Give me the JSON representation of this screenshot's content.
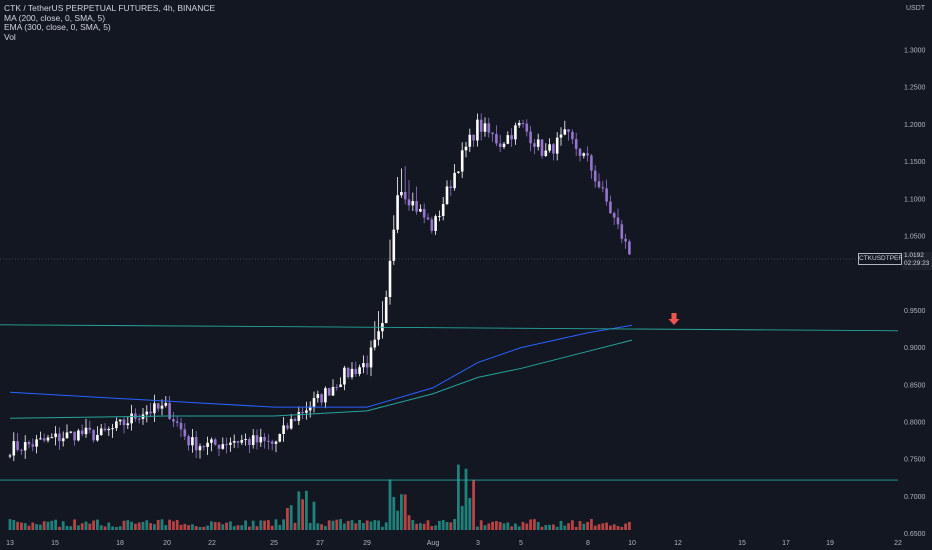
{
  "legend": {
    "title": "CTK / TetherUS PERPETUAL FUTURES, 4h, BINANCE",
    "ma": "MA (200, close, 0, SMA, 5)",
    "ema": "EMA (300, close, 0, SMA, 5)",
    "vol": "Vol"
  },
  "axis": {
    "unit": "USDT",
    "y_ticks": [
      "1.3000",
      "1.2500",
      "1.2000",
      "1.1500",
      "1.1000",
      "1.0500",
      "0.9500",
      "0.9000",
      "0.8500",
      "0.8000",
      "0.7500",
      "0.7000",
      "0.6500"
    ],
    "x_ticks": [
      "13",
      "15",
      "18",
      "20",
      "22",
      "25",
      "27",
      "29",
      "Aug",
      "3",
      "5",
      "8",
      "10",
      "12",
      "15",
      "17",
      "19",
      "22"
    ]
  },
  "price_label": {
    "symbol": "CTKUSDTPERP",
    "price": "1.0192",
    "countdown": "02:29:23"
  },
  "colors": {
    "background": "#131722",
    "up_candle": "#ffffff",
    "down_candle": "#9575cd",
    "ma_line": "#2962ff",
    "ema_line": "#26a69a",
    "support_line": "#26a69a",
    "vol_up": "#26a69a",
    "vol_down": "#ef5350",
    "arrow": "#ef5350"
  },
  "chart_data": {
    "type": "candlestick",
    "symbol": "CTK / TetherUS PERPETUAL FUTURES",
    "timeframe": "4h",
    "exchange": "BINANCE",
    "y_unit": "USDT",
    "ylim": [
      0.65,
      1.31
    ],
    "price_path": [
      [
        "13",
        0.765
      ],
      [
        "14",
        0.77
      ],
      [
        "15",
        0.778
      ],
      [
        "16",
        0.785
      ],
      [
        "17",
        0.782
      ],
      [
        "18",
        0.795
      ],
      [
        "19",
        0.815
      ],
      [
        "20",
        0.818
      ],
      [
        "21",
        0.772
      ],
      [
        "22",
        0.768
      ],
      [
        "23",
        0.776
      ],
      [
        "24",
        0.774
      ],
      [
        "25",
        0.77
      ],
      [
        "26",
        0.81
      ],
      [
        "27",
        0.832
      ],
      [
        "28",
        0.862
      ],
      [
        "29",
        0.88
      ],
      [
        "30",
        0.93
      ],
      [
        "31",
        1.12
      ],
      [
        "Aug",
        1.06
      ],
      [
        "2",
        1.14
      ],
      [
        "3",
        1.2
      ],
      [
        "4",
        1.175
      ],
      [
        "5",
        1.2
      ],
      [
        "6",
        1.16
      ],
      [
        "7",
        1.185
      ],
      [
        "8",
        1.15
      ],
      [
        "9",
        1.085
      ],
      [
        "10",
        1.019
      ]
    ],
    "ma_200": [
      [
        "13",
        0.84
      ],
      [
        "20",
        0.828
      ],
      [
        "25",
        0.82
      ],
      [
        "29",
        0.82
      ],
      [
        "Aug",
        0.846
      ],
      [
        "3",
        0.88
      ],
      [
        "5",
        0.9
      ],
      [
        "8",
        0.92
      ],
      [
        "10",
        0.93
      ]
    ],
    "ema_300": [
      [
        "13",
        0.805
      ],
      [
        "20",
        0.808
      ],
      [
        "25",
        0.808
      ],
      [
        "29",
        0.815
      ],
      [
        "Aug",
        0.838
      ],
      [
        "3",
        0.86
      ],
      [
        "5",
        0.872
      ],
      [
        "8",
        0.895
      ],
      [
        "10",
        0.91
      ]
    ],
    "horizontal_lines": [
      0.928,
      0.722
    ],
    "last_price": 1.0192
  }
}
